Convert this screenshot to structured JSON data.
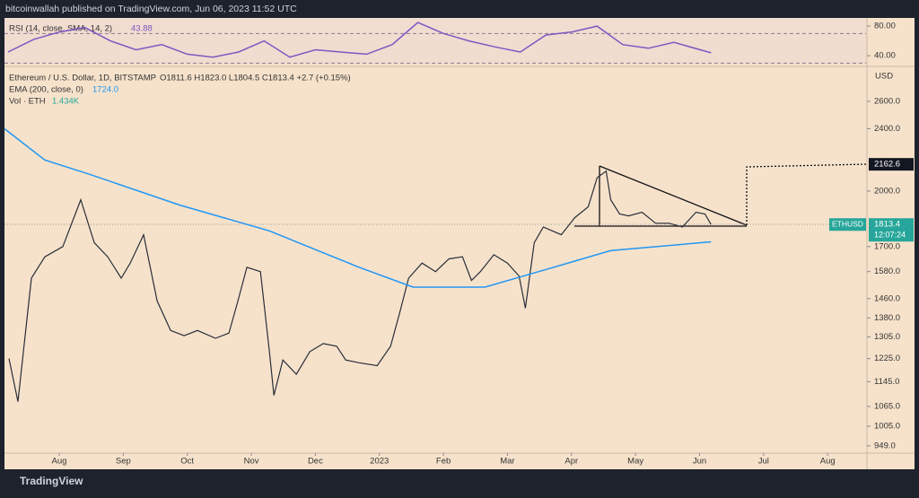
{
  "header": "bitcoinwallah published on TradingView.com, Jun 06, 2023 11:52 UTC",
  "footer": "TradingView",
  "chart_data": [
    {
      "type": "line",
      "title": "RSI (14, close, SMA, 14, 2)",
      "xlim": [
        0.145,
        13.6
      ],
      "ylim": [
        28,
        91
      ],
      "yticks": [
        {
          "value": 80,
          "label": "80.00"
        },
        {
          "value": 40,
          "label": "40.00"
        }
      ],
      "bands": [
        30,
        70
      ],
      "series": [
        {
          "name": "RSI",
          "color": "#7e57c2",
          "x": [
            0.2,
            0.6,
            1.0,
            1.4,
            1.8,
            2.2,
            2.6,
            3.0,
            3.4,
            3.8,
            4.2,
            4.6,
            5.0,
            5.4,
            5.8,
            6.2,
            6.6,
            7.0,
            7.4,
            7.8,
            8.2,
            8.6,
            9.0,
            9.4,
            9.8,
            10.2,
            10.6,
            11.18
          ],
          "values": [
            45,
            62,
            72,
            78,
            60,
            48,
            55,
            42,
            38,
            45,
            60,
            38,
            48,
            45,
            42,
            55,
            85,
            70,
            60,
            52,
            45,
            68,
            72,
            80,
            55,
            50,
            58,
            43.88
          ]
        }
      ]
    },
    {
      "type": "line",
      "title": "Ethereum / U.S. Dollar, 1D, BITSTAMP",
      "ohlc": "O1811.6 H1823.0 L1804.5 C1813.4 +2.7 (+0.15%)",
      "y_unit": "USD",
      "log_scale": true,
      "xlim": [
        0.145,
        13.6
      ],
      "ylim": [
        929,
        2850
      ],
      "xticks": [
        {
          "value": 1,
          "label": "Aug"
        },
        {
          "value": 2,
          "label": "Sep"
        },
        {
          "value": 3,
          "label": "Oct"
        },
        {
          "value": 4,
          "label": "Nov"
        },
        {
          "value": 5,
          "label": "Dec"
        },
        {
          "value": 6,
          "label": "2023"
        },
        {
          "value": 7,
          "label": "Feb"
        },
        {
          "value": 8,
          "label": "Mar"
        },
        {
          "value": 9,
          "label": "Apr"
        },
        {
          "value": 10,
          "label": "May"
        },
        {
          "value": 11,
          "label": "Jun"
        },
        {
          "value": 12,
          "label": "Jul"
        },
        {
          "value": 13,
          "label": "Aug"
        }
      ],
      "yticks": [
        {
          "value": 2600,
          "label": "2600.0"
        },
        {
          "value": 2400,
          "label": "2400.0"
        },
        {
          "value": 2000,
          "label": "2000.0"
        },
        {
          "value": 1700,
          "label": "1700.0"
        },
        {
          "value": 1580,
          "label": "1580.0"
        },
        {
          "value": 1460,
          "label": "1460.0"
        },
        {
          "value": 1380,
          "label": "1380.0"
        },
        {
          "value": 1305,
          "label": "1305.0"
        },
        {
          "value": 1225,
          "label": "1225.0"
        },
        {
          "value": 1145,
          "label": "1145.0"
        },
        {
          "value": 1065,
          "label": "1065.0"
        },
        {
          "value": 1005,
          "label": "1005.0"
        },
        {
          "value": 949,
          "label": "949.0"
        }
      ],
      "series": [
        {
          "name": "ETHUSD",
          "color": "#2a2e39",
          "x": [
            0.215,
            0.355,
            0.565,
            0.776,
            1.056,
            1.337,
            1.547,
            1.757,
            1.968,
            2.108,
            2.318,
            2.529,
            2.739,
            2.95,
            3.16,
            3.44,
            3.651,
            3.791,
            3.931,
            4.142,
            4.282,
            4.352,
            4.492,
            4.703,
            4.913,
            5.123,
            5.334,
            5.474,
            5.684,
            5.965,
            6.175,
            6.316,
            6.456,
            6.666,
            6.877,
            7.087,
            7.297,
            7.438,
            7.578,
            7.788,
            7.999,
            8.181,
            8.279,
            8.419,
            8.56,
            8.7,
            8.84,
            9.05,
            9.261,
            9.401,
            9.541,
            9.612,
            9.752,
            9.892,
            10.102,
            10.313,
            10.523,
            10.733,
            10.944,
            11.084,
            11.18
          ],
          "values": [
            1225,
            1080,
            1550,
            1650,
            1700,
            1950,
            1720,
            1650,
            1550,
            1620,
            1760,
            1450,
            1330,
            1310,
            1330,
            1300,
            1320,
            1450,
            1600,
            1580,
            1250,
            1100,
            1220,
            1170,
            1250,
            1280,
            1270,
            1220,
            1210,
            1200,
            1270,
            1400,
            1550,
            1620,
            1580,
            1640,
            1650,
            1540,
            1580,
            1660,
            1620,
            1560,
            1420,
            1720,
            1800,
            1780,
            1760,
            1850,
            1910,
            2080,
            2120,
            1950,
            1870,
            1860,
            1880,
            1820,
            1820,
            1800,
            1880,
            1870,
            1813.4
          ],
          "countdown": "12:07:24"
        },
        {
          "name": "EMA (200, close, 0)",
          "color": "#2196f3",
          "value_label": "1724.0",
          "x": [
            0.145,
            0.776,
            1.477,
            2.879,
            4.282,
            5.684,
            6.526,
            7.648,
            8.489,
            9.612,
            11.18
          ],
          "values": [
            2400,
            2190,
            2100,
            1920,
            1780,
            1600,
            1510,
            1510,
            1580,
            1680,
            1724
          ]
        }
      ],
      "indicators": [
        {
          "name": "Vol · ETH",
          "value": "1.434K"
        }
      ],
      "target": 2162.6
    }
  ]
}
